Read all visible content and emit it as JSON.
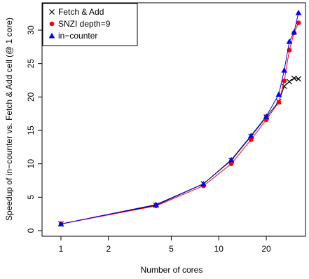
{
  "chart_data": {
    "type": "line",
    "xlabel": "Number of cores",
    "ylabel": "Speedup of in−counter vs. Fetch & Add cell (@ 1 core)",
    "x_scale": "log",
    "x_ticks": [
      1,
      2,
      5,
      10,
      20
    ],
    "x_tick_labels": [
      "1",
      "2",
      "5",
      "10",
      "20"
    ],
    "xlim": [
      1,
      34
    ],
    "y_ticks": [
      0,
      5,
      10,
      15,
      20,
      25,
      30
    ],
    "y_tick_labels": [
      "0",
      "5",
      "10",
      "15",
      "20",
      "25",
      "30"
    ],
    "ylim": [
      0,
      33
    ],
    "grid": false,
    "legend_position": "top-left",
    "series": [
      {
        "name": "Fetch & Add",
        "marker": "x",
        "color": "#000000",
        "x": [
          1,
          4,
          8,
          12,
          16,
          20,
          24,
          26,
          28,
          30,
          32
        ],
        "y": [
          1.0,
          3.8,
          7.0,
          10.5,
          14.1,
          17.0,
          19.3,
          21.6,
          22.3,
          22.8,
          22.7
        ]
      },
      {
        "name": "SNZI depth=9",
        "marker": "circle",
        "color": "#ff0000",
        "x": [
          1,
          4,
          8,
          12,
          16,
          20,
          24,
          26,
          28,
          30,
          32
        ],
        "y": [
          1.0,
          3.7,
          6.7,
          10.0,
          13.6,
          16.6,
          19.2,
          22.4,
          27.0,
          29.6,
          31.1
        ]
      },
      {
        "name": "in−counter",
        "marker": "triangle",
        "color": "#0000ff",
        "x": [
          1,
          4,
          8,
          12,
          16,
          20,
          24,
          26,
          28,
          30,
          32
        ],
        "y": [
          1.0,
          3.9,
          7.0,
          10.6,
          14.2,
          17.1,
          20.4,
          24.0,
          28.3,
          29.7,
          32.6
        ]
      }
    ]
  }
}
